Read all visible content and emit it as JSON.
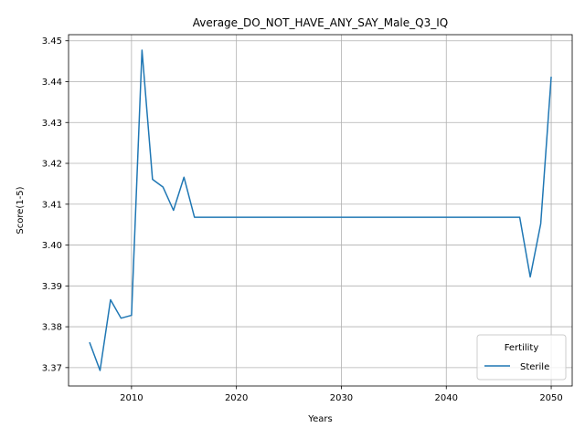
{
  "chart_data": {
    "type": "line",
    "title": "Average_DO_NOT_HAVE_ANY_SAY_Male_Q3_IQ",
    "xlabel": "Years",
    "ylabel": "Score(1-5)",
    "xlim": [
      2004,
      2052
    ],
    "ylim": [
      3.3655,
      3.4515
    ],
    "x_ticks": [
      2010,
      2020,
      2030,
      2040,
      2050
    ],
    "x_tick_labels": [
      "2010",
      "2020",
      "2030",
      "2040",
      "2050"
    ],
    "y_ticks": [
      3.37,
      3.38,
      3.39,
      3.4,
      3.41,
      3.42,
      3.43,
      3.44,
      3.45
    ],
    "y_tick_labels": [
      "3.37",
      "3.38",
      "3.39",
      "3.40",
      "3.41",
      "3.42",
      "3.43",
      "3.44",
      "3.45"
    ],
    "grid": true,
    "legend": {
      "title": "Fertility",
      "placement": "lower-right"
    },
    "series": [
      {
        "name": "Sterile",
        "color": "#1f77b4",
        "x": [
          2006,
          2007,
          2008,
          2009,
          2010,
          2011,
          2012,
          2013,
          2014,
          2015,
          2016,
          2017,
          2018,
          2019,
          2020,
          2021,
          2022,
          2023,
          2024,
          2025,
          2026,
          2027,
          2028,
          2029,
          2030,
          2031,
          2032,
          2033,
          2034,
          2035,
          2036,
          2037,
          2038,
          2039,
          2040,
          2041,
          2042,
          2043,
          2044,
          2045,
          2046,
          2047,
          2048,
          2049,
          2050
        ],
        "y": [
          3.3762,
          3.3693,
          3.3866,
          3.3821,
          3.3828,
          3.4477,
          3.4161,
          3.4142,
          3.4085,
          3.4166,
          3.4068,
          3.4068,
          3.4068,
          3.4068,
          3.4068,
          3.4068,
          3.4068,
          3.4068,
          3.4068,
          3.4068,
          3.4068,
          3.4068,
          3.4068,
          3.4068,
          3.4068,
          3.4068,
          3.4068,
          3.4068,
          3.4068,
          3.4068,
          3.4068,
          3.4068,
          3.4068,
          3.4068,
          3.4068,
          3.4068,
          3.4068,
          3.4068,
          3.4068,
          3.4068,
          3.4068,
          3.4068,
          3.3922,
          3.4052,
          3.4412
        ]
      }
    ]
  }
}
